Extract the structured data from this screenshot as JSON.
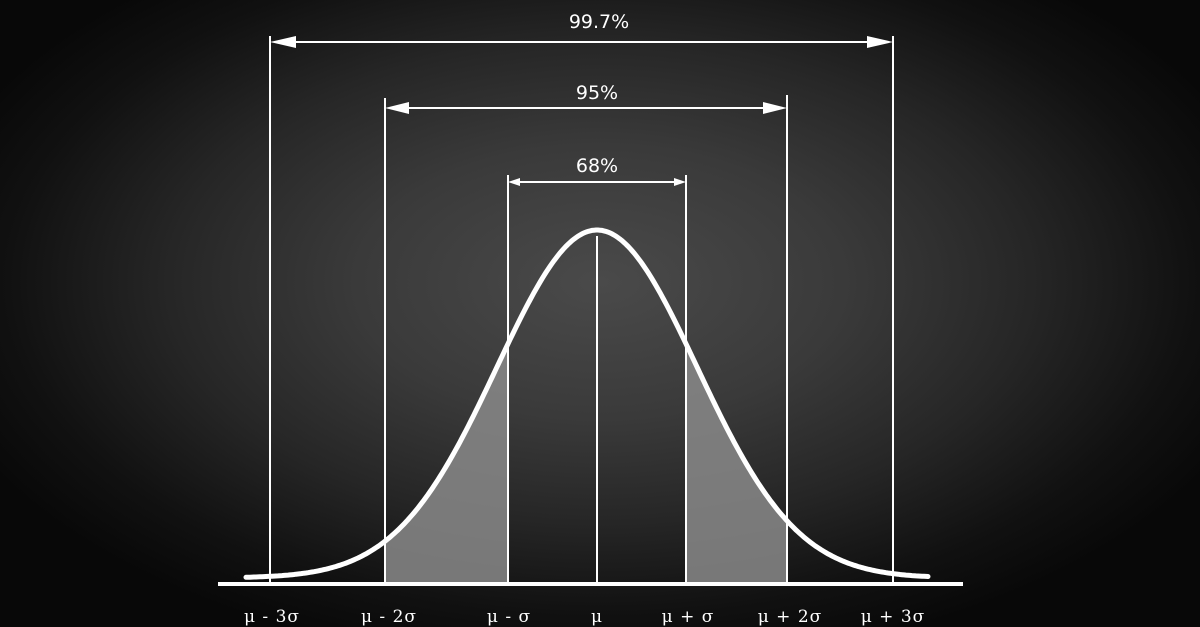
{
  "diagram": {
    "type": "normal-distribution",
    "ranges": [
      {
        "label": "99.7%",
        "from": -3,
        "to": 3
      },
      {
        "label": "95%",
        "from": -2,
        "to": 2
      },
      {
        "label": "68%",
        "from": -1,
        "to": 1
      }
    ],
    "tick_labels": [
      "μ - 3σ",
      "μ - 2σ",
      "μ - σ",
      "μ",
      "μ + σ",
      "μ + 2σ",
      "μ + 3σ"
    ],
    "colors": {
      "chalk": "#ffffff",
      "shaded_tail": "#8a8a8a",
      "board": "#3a3a3a"
    }
  }
}
